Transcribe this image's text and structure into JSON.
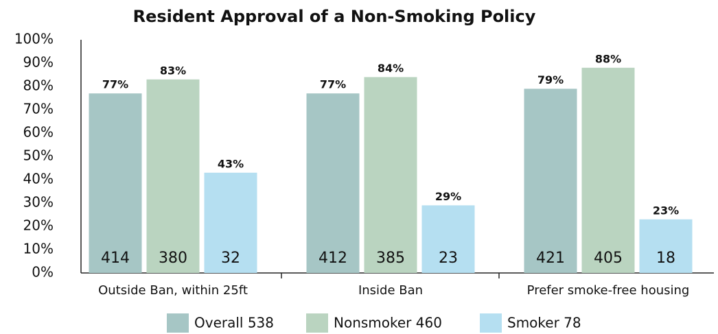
{
  "chart_data": {
    "type": "bar",
    "title": "Resident Approval of a Non-Smoking Policy",
    "categories": [
      "Outside Ban, within 25ft",
      "Inside Ban",
      "Prefer smoke-free housing"
    ],
    "series": [
      {
        "name": "Overall 538",
        "color": "#a6c6c5",
        "values": [
          77,
          77,
          79
        ],
        "value_labels": [
          "77%",
          "77%",
          "79%"
        ],
        "counts": [
          414,
          412,
          421
        ]
      },
      {
        "name": "Nonsmoker 460",
        "color": "#bad4c0",
        "values": [
          83,
          84,
          88
        ],
        "value_labels": [
          "83%",
          "84%",
          "88%"
        ],
        "counts": [
          380,
          385,
          405
        ]
      },
      {
        "name": "Smoker 78",
        "color": "#b5dff1",
        "values": [
          43,
          29,
          23
        ],
        "value_labels": [
          "43%",
          "29%",
          "23%"
        ],
        "counts": [
          32,
          23,
          18
        ]
      }
    ],
    "ylim": [
      0,
      100
    ],
    "yticks": [
      {
        "value": 0,
        "label": "0%"
      },
      {
        "value": 10,
        "label": "10%"
      },
      {
        "value": 20,
        "label": "20%"
      },
      {
        "value": 30,
        "label": "30%"
      },
      {
        "value": 40,
        "label": "40%"
      },
      {
        "value": 50,
        "label": "50%"
      },
      {
        "value": 60,
        "label": "60%"
      },
      {
        "value": 70,
        "label": "70%"
      },
      {
        "value": 80,
        "label": "80%"
      },
      {
        "value": 90,
        "label": "90%"
      },
      {
        "value": 100,
        "label": "100%"
      }
    ],
    "grid": false
  }
}
